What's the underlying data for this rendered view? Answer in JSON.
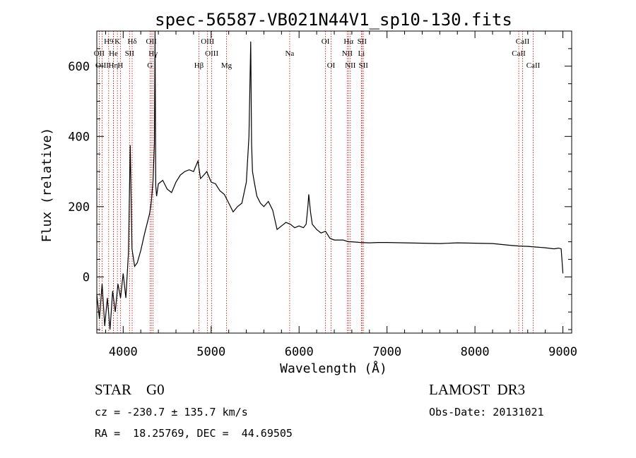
{
  "chart_data": {
    "type": "line",
    "title": "spec-56587-VB021N44V1_sp10-130.fits",
    "xlabel": "Wavelength (Å)",
    "ylabel": "Flux (relative)",
    "xlim": [
      3700,
      9100
    ],
    "ylim": [
      -160,
      700
    ],
    "xticks": [
      4000,
      5000,
      6000,
      7000,
      8000,
      9000
    ],
    "xtick_labels": [
      "4000",
      "5000",
      "6000",
      "7000",
      "8000",
      "9000"
    ],
    "yticks": [
      0,
      200,
      400,
      600
    ],
    "ytick_labels": [
      "0",
      "200",
      "400",
      "600"
    ],
    "grid": false,
    "series": [
      {
        "name": "spectrum",
        "x": [
          3700,
          3730,
          3760,
          3790,
          3820,
          3850,
          3880,
          3910,
          3940,
          3970,
          4000,
          4030,
          4060,
          4080,
          4100,
          4130,
          4160,
          4200,
          4240,
          4280,
          4300,
          4320,
          4340,
          4355,
          4362,
          4370,
          4380,
          4400,
          4450,
          4500,
          4550,
          4600,
          4650,
          4700,
          4750,
          4800,
          4850,
          4861,
          4880,
          4900,
          4950,
          5000,
          5050,
          5100,
          5150,
          5200,
          5250,
          5300,
          5350,
          5400,
          5430,
          5450,
          5460,
          5470,
          5490,
          5520,
          5560,
          5600,
          5650,
          5700,
          5750,
          5800,
          5850,
          5900,
          5950,
          6000,
          6050,
          6080,
          6100,
          6110,
          6130,
          6150,
          6200,
          6250,
          6300,
          6350,
          6400,
          6500,
          6563,
          6600,
          6700,
          6800,
          6900,
          7000,
          7200,
          7400,
          7600,
          7800,
          8000,
          8200,
          8400,
          8500,
          8600,
          8700,
          8800,
          8900,
          8950,
          8980,
          9000
        ],
        "y": [
          -50,
          -120,
          -20,
          -140,
          -60,
          -150,
          -40,
          -100,
          -20,
          -60,
          10,
          -60,
          70,
          375,
          80,
          30,
          40,
          75,
          120,
          160,
          180,
          215,
          275,
          380,
          700,
          260,
          230,
          265,
          275,
          250,
          240,
          270,
          290,
          300,
          305,
          300,
          330,
          310,
          280,
          285,
          300,
          270,
          265,
          245,
          235,
          210,
          185,
          200,
          210,
          270,
          400,
          670,
          380,
          300,
          270,
          230,
          210,
          200,
          215,
          190,
          135,
          145,
          155,
          150,
          140,
          145,
          140,
          150,
          200,
          235,
          185,
          150,
          135,
          125,
          130,
          110,
          105,
          105,
          100,
          100,
          98,
          97,
          98,
          98,
          97,
          96,
          95,
          97,
          96,
          95,
          90,
          88,
          87,
          85,
          83,
          80,
          82,
          80,
          10
        ]
      }
    ],
    "lines": [
      {
        "label": "H9",
        "wavelength": 3835,
        "row": 1
      },
      {
        "label": "K",
        "wavelength": 3934,
        "row": 1
      },
      {
        "label": "Hδ",
        "wavelength": 4102,
        "row": 1
      },
      {
        "label": "OII",
        "wavelength": 4320,
        "row": 1
      },
      {
        "label": "OIII",
        "wavelength": 4959,
        "row": 1
      },
      {
        "label": "OI",
        "wavelength": 6300,
        "row": 1
      },
      {
        "label": "Hα",
        "wavelength": 6563,
        "row": 1
      },
      {
        "label": "SII",
        "wavelength": 6716,
        "row": 1
      },
      {
        "label": "CaII",
        "wavelength": 8542,
        "row": 1
      },
      {
        "label": "OII",
        "wavelength": 3727,
        "row": 2
      },
      {
        "label": "He",
        "wavelength": 3889,
        "row": 2
      },
      {
        "label": "SII",
        "wavelength": 4072,
        "row": 2
      },
      {
        "label": "Hγ",
        "wavelength": 4340,
        "row": 2
      },
      {
        "label": "OIII",
        "wavelength": 5007,
        "row": 2
      },
      {
        "label": "Na",
        "wavelength": 5893,
        "row": 2
      },
      {
        "label": "NII",
        "wavelength": 6548,
        "row": 2
      },
      {
        "label": "Li",
        "wavelength": 6708,
        "row": 2
      },
      {
        "label": "CaII",
        "wavelength": 8498,
        "row": 2
      },
      {
        "label": "OIII",
        "wavelength": 3760,
        "row": 3
      },
      {
        "label": "Hη",
        "wavelength": 3888,
        "row": 3
      },
      {
        "label": "H",
        "wavelength": 3968,
        "row": 3
      },
      {
        "label": "G",
        "wavelength": 4305,
        "row": 3
      },
      {
        "label": "Hβ",
        "wavelength": 4861,
        "row": 3
      },
      {
        "label": "Mg",
        "wavelength": 5175,
        "row": 3
      },
      {
        "label": "OI",
        "wavelength": 6364,
        "row": 3
      },
      {
        "label": "NII",
        "wavelength": 6583,
        "row": 3
      },
      {
        "label": "SII",
        "wavelength": 6731,
        "row": 3
      },
      {
        "label": "CaII",
        "wavelength": 8662,
        "row": 3
      }
    ]
  },
  "info": {
    "class": "STAR    G0",
    "survey": "LAMOST  DR3",
    "cz": "cz = -230.7 ± 135.7 km/s",
    "obs_date": "Obs-Date: 20131021",
    "radec": "RA =  18.25769, DEC =  44.69505"
  },
  "colors": {
    "line": "#000000",
    "marker": "#cc0000"
  }
}
